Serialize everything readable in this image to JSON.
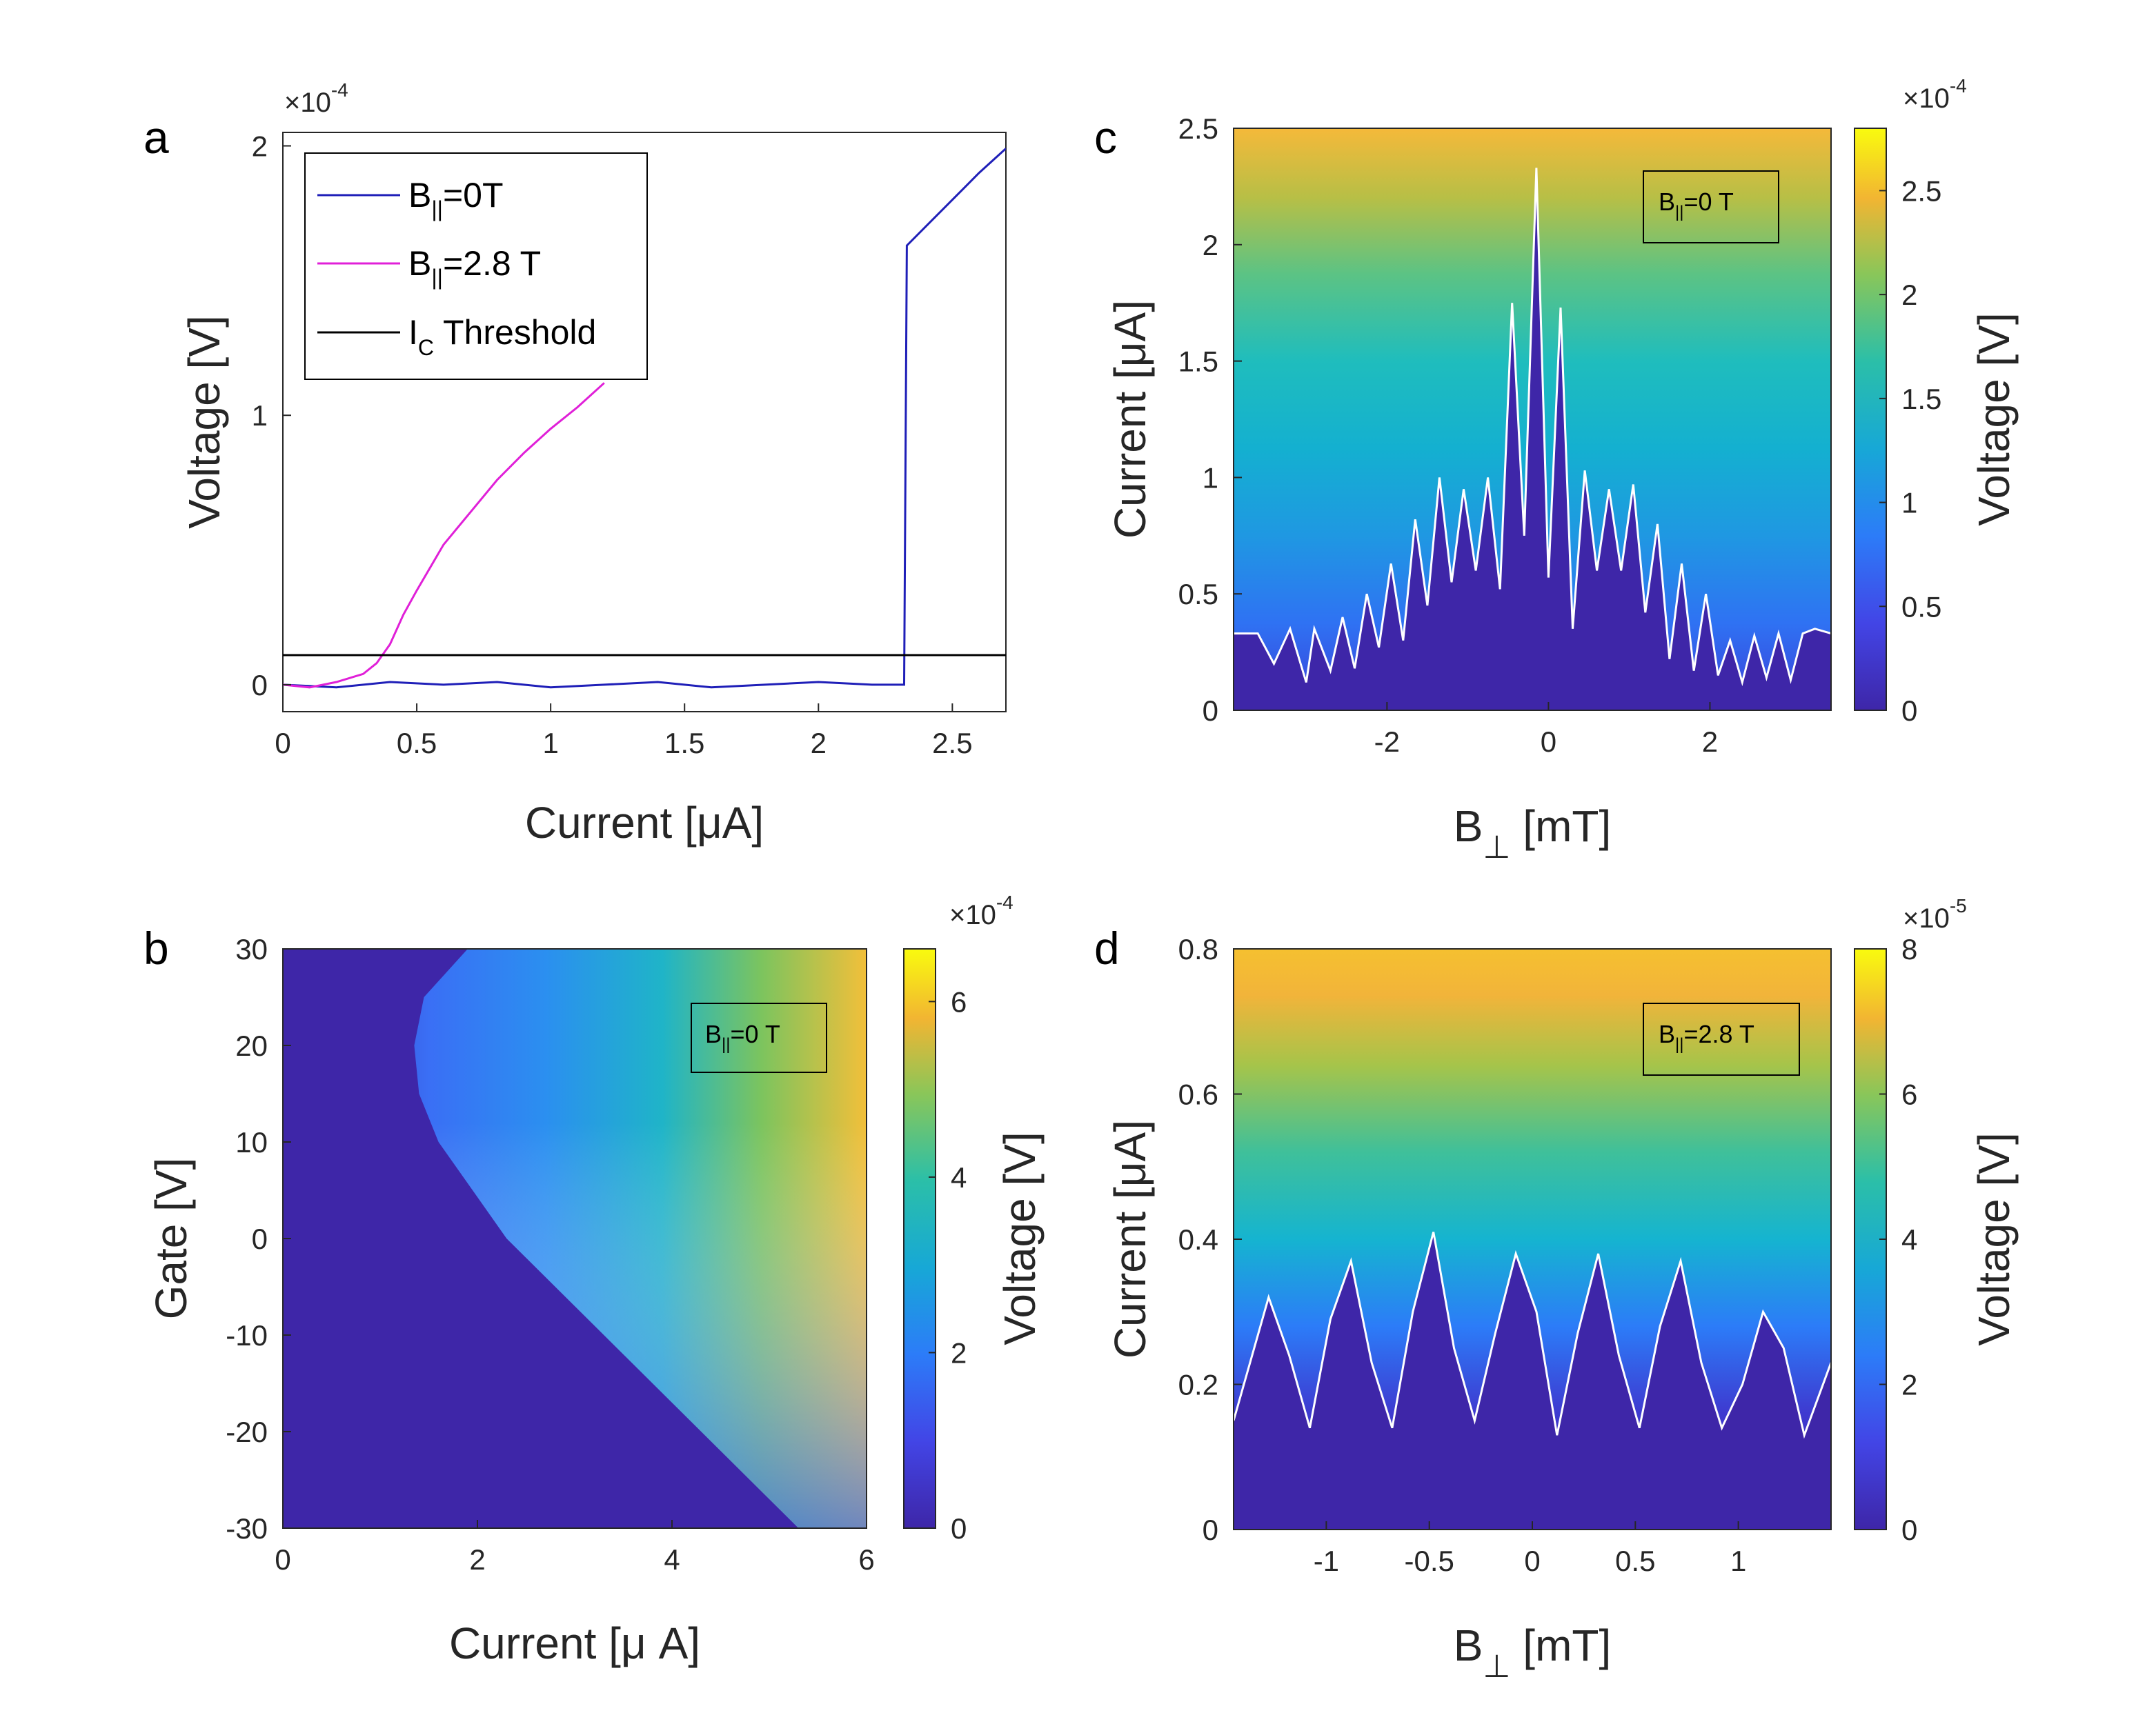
{
  "chart_data": [
    {
      "panel": "a",
      "type": "line",
      "xlabel": "Current [μA]",
      "ylabel": "Voltage [V]",
      "xlim": [
        0,
        2.7
      ],
      "ylim": [
        -0.1,
        2.05
      ],
      "y_exponent": "-4",
      "xticks": [
        "0",
        "0.5",
        "1",
        "1.5",
        "2",
        "2.5"
      ],
      "yticks": [
        "0",
        "1",
        "2"
      ],
      "legend_position": "top-left",
      "series": [
        {
          "name": "B||=0T",
          "label_main": "B",
          "label_sub": "||",
          "label_rest": "=0T",
          "color": "#1f1fb8",
          "x": [
            0,
            0.2,
            0.4,
            0.6,
            0.8,
            1.0,
            1.2,
            1.4,
            1.6,
            1.8,
            2.0,
            2.2,
            2.32,
            2.33,
            2.4,
            2.5,
            2.6,
            2.7
          ],
          "y": [
            0,
            -0.01,
            0.01,
            0.0,
            0.01,
            -0.01,
            0.0,
            0.01,
            -0.01,
            0.0,
            0.01,
            0.0,
            0.0,
            1.63,
            1.7,
            1.8,
            1.9,
            1.99
          ]
        },
        {
          "name": "B||=2.8 T",
          "label_main": "B",
          "label_sub": "||",
          "label_rest": "=2.8 T",
          "color": "#e020d8",
          "x": [
            0,
            0.1,
            0.2,
            0.3,
            0.35,
            0.4,
            0.45,
            0.5,
            0.6,
            0.7,
            0.8,
            0.9,
            1.0,
            1.1,
            1.2
          ],
          "y": [
            0.0,
            -0.01,
            0.01,
            0.04,
            0.08,
            0.15,
            0.26,
            0.35,
            0.52,
            0.64,
            0.76,
            0.86,
            0.95,
            1.03,
            1.12
          ]
        },
        {
          "name": "IC Threshold",
          "label_main": "I",
          "label_sub": "C",
          "label_rest": " Threshold",
          "color": "#000000",
          "x": [
            0,
            2.7
          ],
          "y": [
            0.11,
            0.11
          ]
        }
      ]
    },
    {
      "panel": "b",
      "type": "heatmap",
      "xlabel": "Current [μ A]",
      "ylabel": "Gate [V]",
      "xlim": [
        0,
        6
      ],
      "ylim": [
        -30,
        30
      ],
      "xticks": [
        "0",
        "2",
        "4",
        "6"
      ],
      "yticks": [
        "30",
        "20",
        "10",
        "0",
        "-10",
        "-20",
        "-30"
      ],
      "colorbar_label": "Voltage [V]",
      "colorbar_exponent": "-4",
      "colorbar_range": [
        0,
        6.6
      ],
      "colorbar_ticks": [
        "0",
        "2",
        "4",
        "6"
      ],
      "inset_main": "B",
      "inset_sub": "||",
      "inset_rest": "=0 T",
      "critical_current_boundary": {
        "gate": [
          30,
          25,
          20,
          15,
          10,
          5,
          0,
          -5,
          -10,
          -15,
          -20,
          -25,
          -30
        ],
        "current": [
          1.9,
          1.45,
          1.35,
          1.4,
          1.6,
          1.95,
          2.3,
          2.8,
          3.3,
          3.8,
          4.3,
          4.8,
          5.3
        ]
      }
    },
    {
      "panel": "c",
      "type": "heatmap",
      "xlabel": "B⊥ [mT]",
      "ylabel": "Current [μA]",
      "xlim": [
        -3.9,
        3.5
      ],
      "ylim": [
        0,
        2.5
      ],
      "xticks": [
        "-2",
        "0",
        "2"
      ],
      "yticks": [
        "0",
        "0.5",
        "1",
        "1.5",
        "2",
        "2.5"
      ],
      "colorbar_label": "Voltage [V]",
      "colorbar_exponent": "-4",
      "colorbar_range": [
        0,
        2.8
      ],
      "colorbar_ticks": [
        "0",
        "0.5",
        "1",
        "1.5",
        "2",
        "2.5"
      ],
      "inset_main": "B",
      "inset_sub": "||",
      "inset_rest": "=0 T",
      "critical_current": {
        "B": [
          -3.9,
          -3.6,
          -3.4,
          -3.2,
          -3.0,
          -2.9,
          -2.7,
          -2.55,
          -2.4,
          -2.25,
          -2.1,
          -1.95,
          -1.8,
          -1.65,
          -1.5,
          -1.35,
          -1.2,
          -1.05,
          -0.9,
          -0.75,
          -0.6,
          -0.45,
          -0.3,
          -0.15,
          0,
          0.15,
          0.3,
          0.45,
          0.6,
          0.75,
          0.9,
          1.05,
          1.2,
          1.35,
          1.5,
          1.65,
          1.8,
          1.95,
          2.1,
          2.25,
          2.4,
          2.55,
          2.7,
          2.85,
          3.0,
          3.15,
          3.3,
          3.5
        ],
        "Ic": [
          0.33,
          0.33,
          0.2,
          0.35,
          0.12,
          0.35,
          0.17,
          0.4,
          0.18,
          0.5,
          0.27,
          0.63,
          0.3,
          0.82,
          0.45,
          1.0,
          0.55,
          0.95,
          0.6,
          1.0,
          0.52,
          1.75,
          0.75,
          2.33,
          0.57,
          1.73,
          0.35,
          1.03,
          0.6,
          0.95,
          0.6,
          0.97,
          0.42,
          0.8,
          0.22,
          0.63,
          0.17,
          0.5,
          0.15,
          0.3,
          0.12,
          0.32,
          0.14,
          0.33,
          0.13,
          0.33,
          0.35,
          0.33
        ]
      }
    },
    {
      "panel": "d",
      "type": "heatmap",
      "xlabel": "B⊥ [mT]",
      "ylabel": "Current [μA]",
      "xlim": [
        -1.45,
        1.45
      ],
      "ylim": [
        0,
        0.8
      ],
      "xticks": [
        "-1",
        "-0.5",
        "0",
        "0.5",
        "1"
      ],
      "yticks": [
        "0",
        "0.2",
        "0.4",
        "0.6",
        "0.8"
      ],
      "colorbar_label": "Voltage [V]",
      "colorbar_exponent": "-5",
      "colorbar_range": [
        0,
        8
      ],
      "colorbar_ticks": [
        "0",
        "2",
        "4",
        "6",
        "8"
      ],
      "inset_main": "B",
      "inset_sub": "||",
      "inset_rest": "=2.8 T",
      "critical_current": {
        "B": [
          -1.45,
          -1.38,
          -1.28,
          -1.18,
          -1.08,
          -0.98,
          -0.88,
          -0.78,
          -0.68,
          -0.58,
          -0.48,
          -0.38,
          -0.28,
          -0.18,
          -0.08,
          0.02,
          0.12,
          0.22,
          0.32,
          0.42,
          0.52,
          0.62,
          0.72,
          0.82,
          0.92,
          1.02,
          1.12,
          1.22,
          1.32,
          1.45
        ],
        "Ic": [
          0.15,
          0.22,
          0.32,
          0.24,
          0.14,
          0.29,
          0.37,
          0.23,
          0.14,
          0.3,
          0.41,
          0.25,
          0.15,
          0.27,
          0.38,
          0.3,
          0.13,
          0.27,
          0.38,
          0.24,
          0.14,
          0.28,
          0.37,
          0.23,
          0.14,
          0.2,
          0.3,
          0.25,
          0.13,
          0.23
        ]
      }
    }
  ]
}
